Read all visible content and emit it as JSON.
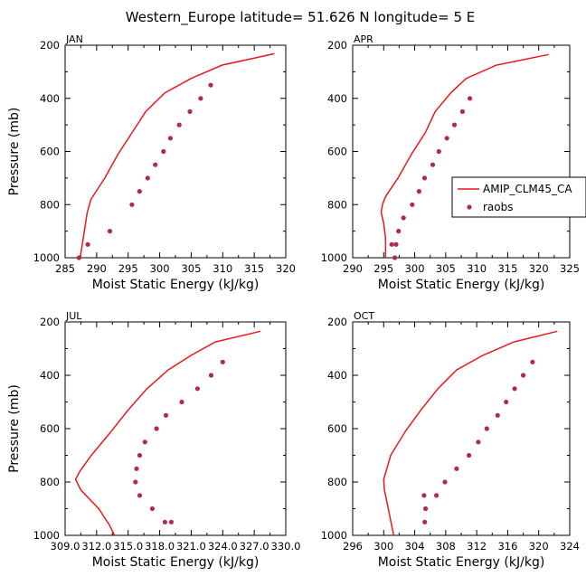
{
  "figure": {
    "title": "Western_Europe  latitude= 51.626 N longitude= 5 E"
  },
  "colors": {
    "model": "#e8181c",
    "obs": "#b02a4a",
    "axis": "#000000"
  },
  "legend": {
    "placement": "right-middle",
    "entries": [
      {
        "label": "AMIP_CLM45_CA",
        "style": "line"
      },
      {
        "label": "raobs",
        "style": "dot"
      }
    ]
  },
  "chart_data": [
    {
      "type": "line",
      "title": "JAN",
      "xlabel": "Moist Static Energy (kJ/kg)",
      "ylabel": "Pressure (mb)",
      "xlim": [
        285,
        320
      ],
      "ylim": [
        1000,
        200
      ],
      "xticks": [
        "285",
        "290",
        "295",
        "300",
        "305",
        "310",
        "315",
        "320"
      ],
      "yticks": [
        "200",
        "400",
        "600",
        "800",
        "1000"
      ],
      "series": [
        {
          "name": "AMIP_CLM45_CA",
          "kind": "line",
          "x": [
            318.2,
            309.9,
            305.0,
            300.8,
            297.8,
            295.6,
            293.4,
            291.3,
            289.1,
            288.5,
            287.4
          ],
          "y": [
            232,
            275,
            325,
            380,
            450,
            530,
            610,
            700,
            780,
            830,
            1000
          ]
        },
        {
          "name": "raobs",
          "kind": "points",
          "x": [
            308.1,
            306.5,
            304.8,
            303.1,
            301.7,
            300.6,
            299.3,
            298.1,
            296.8,
            295.6,
            292.1,
            288.6,
            287.2
          ],
          "y": [
            350,
            400,
            450,
            500,
            550,
            600,
            650,
            700,
            750,
            800,
            900,
            950,
            1000
          ]
        }
      ]
    },
    {
      "type": "line",
      "title": "APR",
      "xlabel": "Moist Static Energy (kJ/kg)",
      "ylabel": "",
      "xlim": [
        290,
        325
      ],
      "ylim": [
        1000,
        200
      ],
      "xticks": [
        "290",
        "295",
        "300",
        "305",
        "310",
        "315",
        "320",
        "325"
      ],
      "yticks": [
        "200",
        "400",
        "600",
        "800",
        "1000"
      ],
      "series": [
        {
          "name": "AMIP_CLM45_CA",
          "kind": "line",
          "x": [
            321.6,
            313.2,
            308.3,
            305.8,
            303.3,
            301.7,
            299.5,
            297.3,
            295.3,
            294.8,
            294.6,
            295.0,
            295.3,
            295.3
          ],
          "y": [
            235,
            275,
            325,
            380,
            450,
            530,
            610,
            700,
            770,
            800,
            830,
            870,
            925,
            1000
          ]
        },
        {
          "name": "raobs",
          "kind": "points",
          "x": [
            308.9,
            307.7,
            306.4,
            305.2,
            303.9,
            302.9,
            301.6,
            300.7,
            299.6,
            298.2,
            297.4,
            297.0,
            296.8,
            296.3
          ],
          "y": [
            400,
            450,
            500,
            550,
            600,
            650,
            700,
            750,
            800,
            850,
            900,
            950,
            1000,
            950
          ]
        }
      ]
    },
    {
      "type": "line",
      "title": "JUL",
      "xlabel": "Moist Static Energy (kJ/kg)",
      "ylabel": "Pressure (mb)",
      "xlim": [
        309.0,
        330.0
      ],
      "ylim": [
        1000,
        200
      ],
      "xticks": [
        "309.0",
        "312.0",
        "315.0",
        "318.0",
        "321.0",
        "324.0",
        "327.0",
        "330.0"
      ],
      "yticks": [
        "200",
        "400",
        "600",
        "800",
        "1000"
      ],
      "series": [
        {
          "name": "AMIP_CLM45_CA",
          "kind": "line",
          "x": [
            327.6,
            323.3,
            321.0,
            318.8,
            316.8,
            315.0,
            313.4,
            311.5,
            310.4,
            310.0,
            310.5,
            312.2,
            313.2,
            313.7
          ],
          "y": [
            235,
            275,
            325,
            380,
            450,
            530,
            610,
            700,
            760,
            790,
            830,
            900,
            960,
            1000
          ]
        },
        {
          "name": "raobs",
          "kind": "points",
          "x": [
            324.0,
            322.9,
            321.6,
            320.1,
            318.6,
            317.7,
            316.6,
            316.1,
            315.8,
            315.7,
            316.1,
            317.3,
            318.5,
            319.1
          ],
          "y": [
            350,
            400,
            450,
            500,
            550,
            600,
            650,
            700,
            750,
            800,
            850,
            900,
            950,
            950
          ]
        }
      ]
    },
    {
      "type": "line",
      "title": "OCT",
      "xlabel": "Moist Static Energy (kJ/kg)",
      "ylabel": "",
      "xlim": [
        296,
        324
      ],
      "ylim": [
        1000,
        200
      ],
      "xticks": [
        "296",
        "300",
        "304",
        "308",
        "312",
        "316",
        "320",
        "324"
      ],
      "yticks": [
        "200",
        "400",
        "600",
        "800",
        "1000"
      ],
      "series": [
        {
          "name": "AMIP_CLM45_CA",
          "kind": "line",
          "x": [
            322.4,
            316.8,
            312.8,
            309.4,
            307.0,
            304.8,
            302.8,
            300.9,
            300.3,
            300.0,
            300.1,
            300.6,
            301.0,
            301.3
          ],
          "y": [
            235,
            275,
            325,
            380,
            450,
            530,
            610,
            700,
            760,
            790,
            830,
            900,
            960,
            1000
          ]
        },
        {
          "name": "raobs",
          "kind": "points",
          "x": [
            319.2,
            318.0,
            316.9,
            315.8,
            314.7,
            313.3,
            312.2,
            311.0,
            309.4,
            307.9,
            306.8,
            305.4,
            305.3,
            305.2
          ],
          "y": [
            350,
            400,
            450,
            500,
            550,
            600,
            650,
            700,
            750,
            800,
            850,
            900,
            950,
            850
          ]
        }
      ]
    }
  ]
}
